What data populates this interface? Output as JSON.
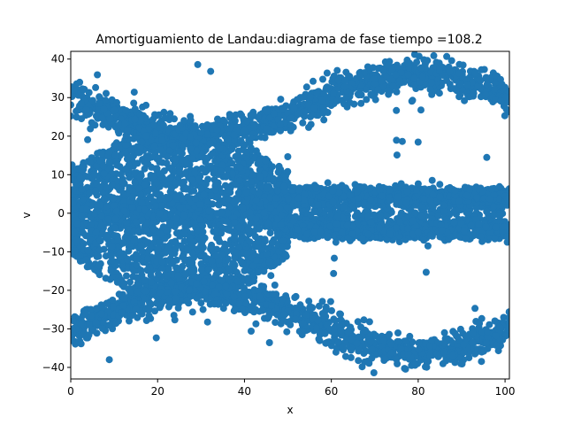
{
  "chart_data": {
    "type": "scatter",
    "title": "Amortiguamiento de Landau:diagrama de fase  tiempo =108.2",
    "xlabel": "x",
    "ylabel": "v",
    "xlim": [
      0,
      101
    ],
    "ylim": [
      -43,
      42
    ],
    "xticks": [
      0,
      20,
      40,
      60,
      80,
      100
    ],
    "yticks": [
      -40,
      -30,
      -20,
      -10,
      0,
      10,
      20,
      30,
      40
    ],
    "grid": false,
    "legend": "none",
    "marker_color": "#1f77b4",
    "series": [
      {
        "regions": [
          {
            "kind": "band",
            "x0": 0,
            "x1": 101,
            "center": 0,
            "halfwidth": 3.5,
            "density": 0.5,
            "spread": 1.2
          },
          {
            "kind": "band",
            "x0": 48,
            "x1": 101,
            "center": 4.5,
            "halfwidth": 1.8,
            "density": 1.0,
            "spread": 1.5
          },
          {
            "kind": "band",
            "x0": 48,
            "x1": 101,
            "center": -4.5,
            "halfwidth": 1.8,
            "density": 1.0,
            "spread": 1.5
          },
          {
            "kind": "blob",
            "x0": 0,
            "x1": 50,
            "ymin": -22,
            "ymax": 22,
            "density": 2.0
          },
          {
            "kind": "curve",
            "x0": 0,
            "x1": 101,
            "base": 28,
            "amp": -8,
            "phase": 30,
            "thickness": 3.5,
            "density": 1.2
          },
          {
            "kind": "curve",
            "x0": 0,
            "x1": 101,
            "base": -28,
            "amp": 8,
            "phase": 30,
            "thickness": 3.5,
            "density": 1.2
          },
          {
            "kind": "scatter",
            "x0": 0,
            "x1": 101,
            "ymin": -40,
            "ymax": 40,
            "density": 0.15
          }
        ]
      }
    ]
  }
}
